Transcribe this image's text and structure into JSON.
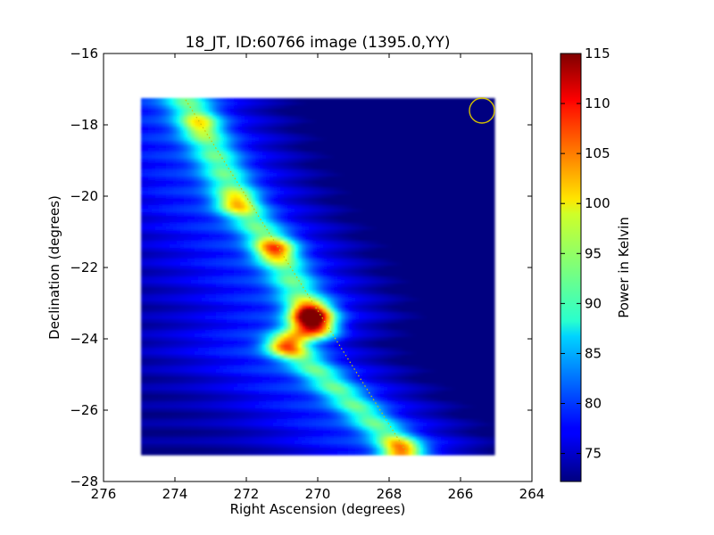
{
  "chart_data": {
    "type": "heatmap",
    "title": "18_JT, ID:60766 image (1395.0,YY)",
    "xlabel": "Right Ascension (degrees)",
    "ylabel": "Declination (degrees)",
    "xlim": [
      276,
      264
    ],
    "ylim": [
      -28,
      -16
    ],
    "x_ticks": [
      276,
      274,
      272,
      270,
      268,
      266,
      264
    ],
    "x_tick_labels": [
      "276",
      "274",
      "272",
      "270",
      "268",
      "266",
      "264"
    ],
    "y_ticks": [
      -16,
      -18,
      -20,
      -22,
      -24,
      -26,
      -28
    ],
    "y_tick_labels": [
      "−16",
      "−18",
      "−20",
      "−22",
      "−24",
      "−26",
      "−28"
    ],
    "image_extent": {
      "ra": [
        274.95,
        265.05
      ],
      "dec": [
        -27.25,
        -17.25
      ]
    },
    "colormap": "jet",
    "colorbar": {
      "label": "Power in Kelvin",
      "range": [
        72.2,
        115
      ],
      "ticks": [
        75,
        80,
        85,
        90,
        95,
        100,
        105,
        110,
        115
      ],
      "tick_labels": [
        "75",
        "80",
        "85",
        "90",
        "95",
        "100",
        "105",
        "110",
        "115"
      ]
    },
    "ridge_path": [
      {
        "dec": -17.25,
        "ra": 273.7
      },
      {
        "dec": -18.0,
        "ra": 273.3
      },
      {
        "dec": -20.2,
        "ra": 272.2
      },
      {
        "dec": -21.5,
        "ra": 271.2
      },
      {
        "dec": -23.3,
        "ra": 270.2
      },
      {
        "dec": -24.2,
        "ra": 270.8
      },
      {
        "dec": -27.1,
        "ra": 267.6
      }
    ],
    "hotspots": [
      {
        "ra": 273.3,
        "dec": -18.0,
        "value": 96
      },
      {
        "ra": 272.3,
        "dec": -20.2,
        "value": 99
      },
      {
        "ra": 271.2,
        "dec": -21.5,
        "value": 104
      },
      {
        "ra": 270.2,
        "dec": -23.3,
        "value": 115
      },
      {
        "ra": 270.0,
        "dec": -23.7,
        "value": 109
      },
      {
        "ra": 270.9,
        "dec": -24.2,
        "value": 104
      },
      {
        "ra": 267.7,
        "dec": -27.1,
        "value": 102
      }
    ],
    "overlay_line": {
      "from": {
        "ra": 273.7,
        "dec": -17.3
      },
      "to": {
        "ra": 267.5,
        "dec": -27.2
      },
      "color": "#c8c800",
      "style": "dotted"
    },
    "beam_circle": {
      "ra": 265.4,
      "dec": -17.6,
      "radius_deg": 0.35,
      "color": "#d4c000"
    },
    "grid": false
  }
}
